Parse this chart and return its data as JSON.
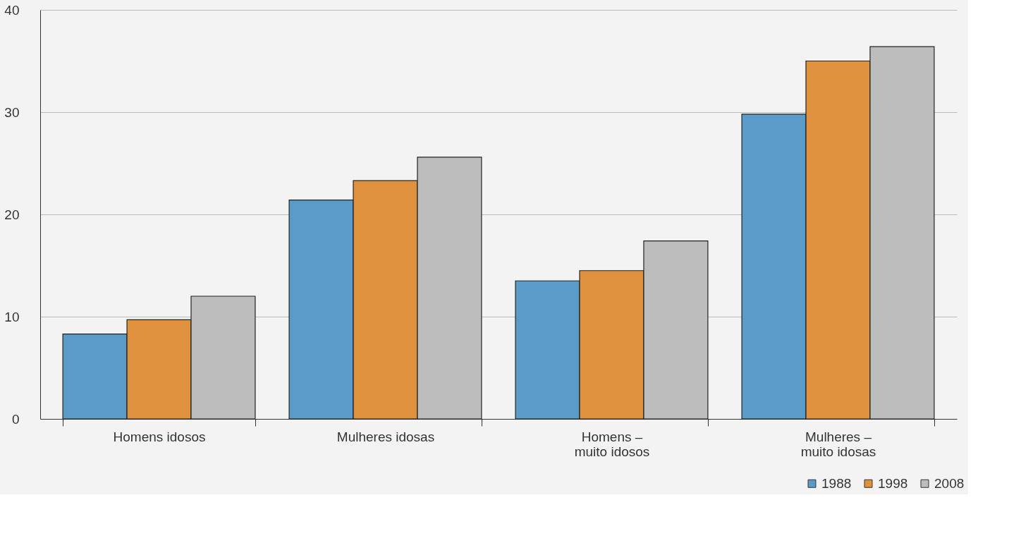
{
  "chart_data": {
    "type": "bar",
    "categories": [
      "Homens idosos",
      "Mulheres idosas",
      "Homens –\nmuito idosos",
      "Mulheres –\nmuito idosas"
    ],
    "series": [
      {
        "name": "1988",
        "color": "#5b9bc9",
        "values": [
          8.3,
          21.4,
          13.5,
          29.8
        ]
      },
      {
        "name": "1998",
        "color": "#e0913e",
        "values": [
          9.7,
          23.3,
          14.5,
          35.0
        ]
      },
      {
        "name": "2008",
        "color": "#bdbdbd",
        "values": [
          12.0,
          25.6,
          17.4,
          36.4
        ]
      }
    ],
    "ylim": [
      0,
      40
    ],
    "yticks": [
      0,
      10,
      20,
      30,
      40
    ],
    "grid": "y",
    "legend": "bottom right"
  }
}
